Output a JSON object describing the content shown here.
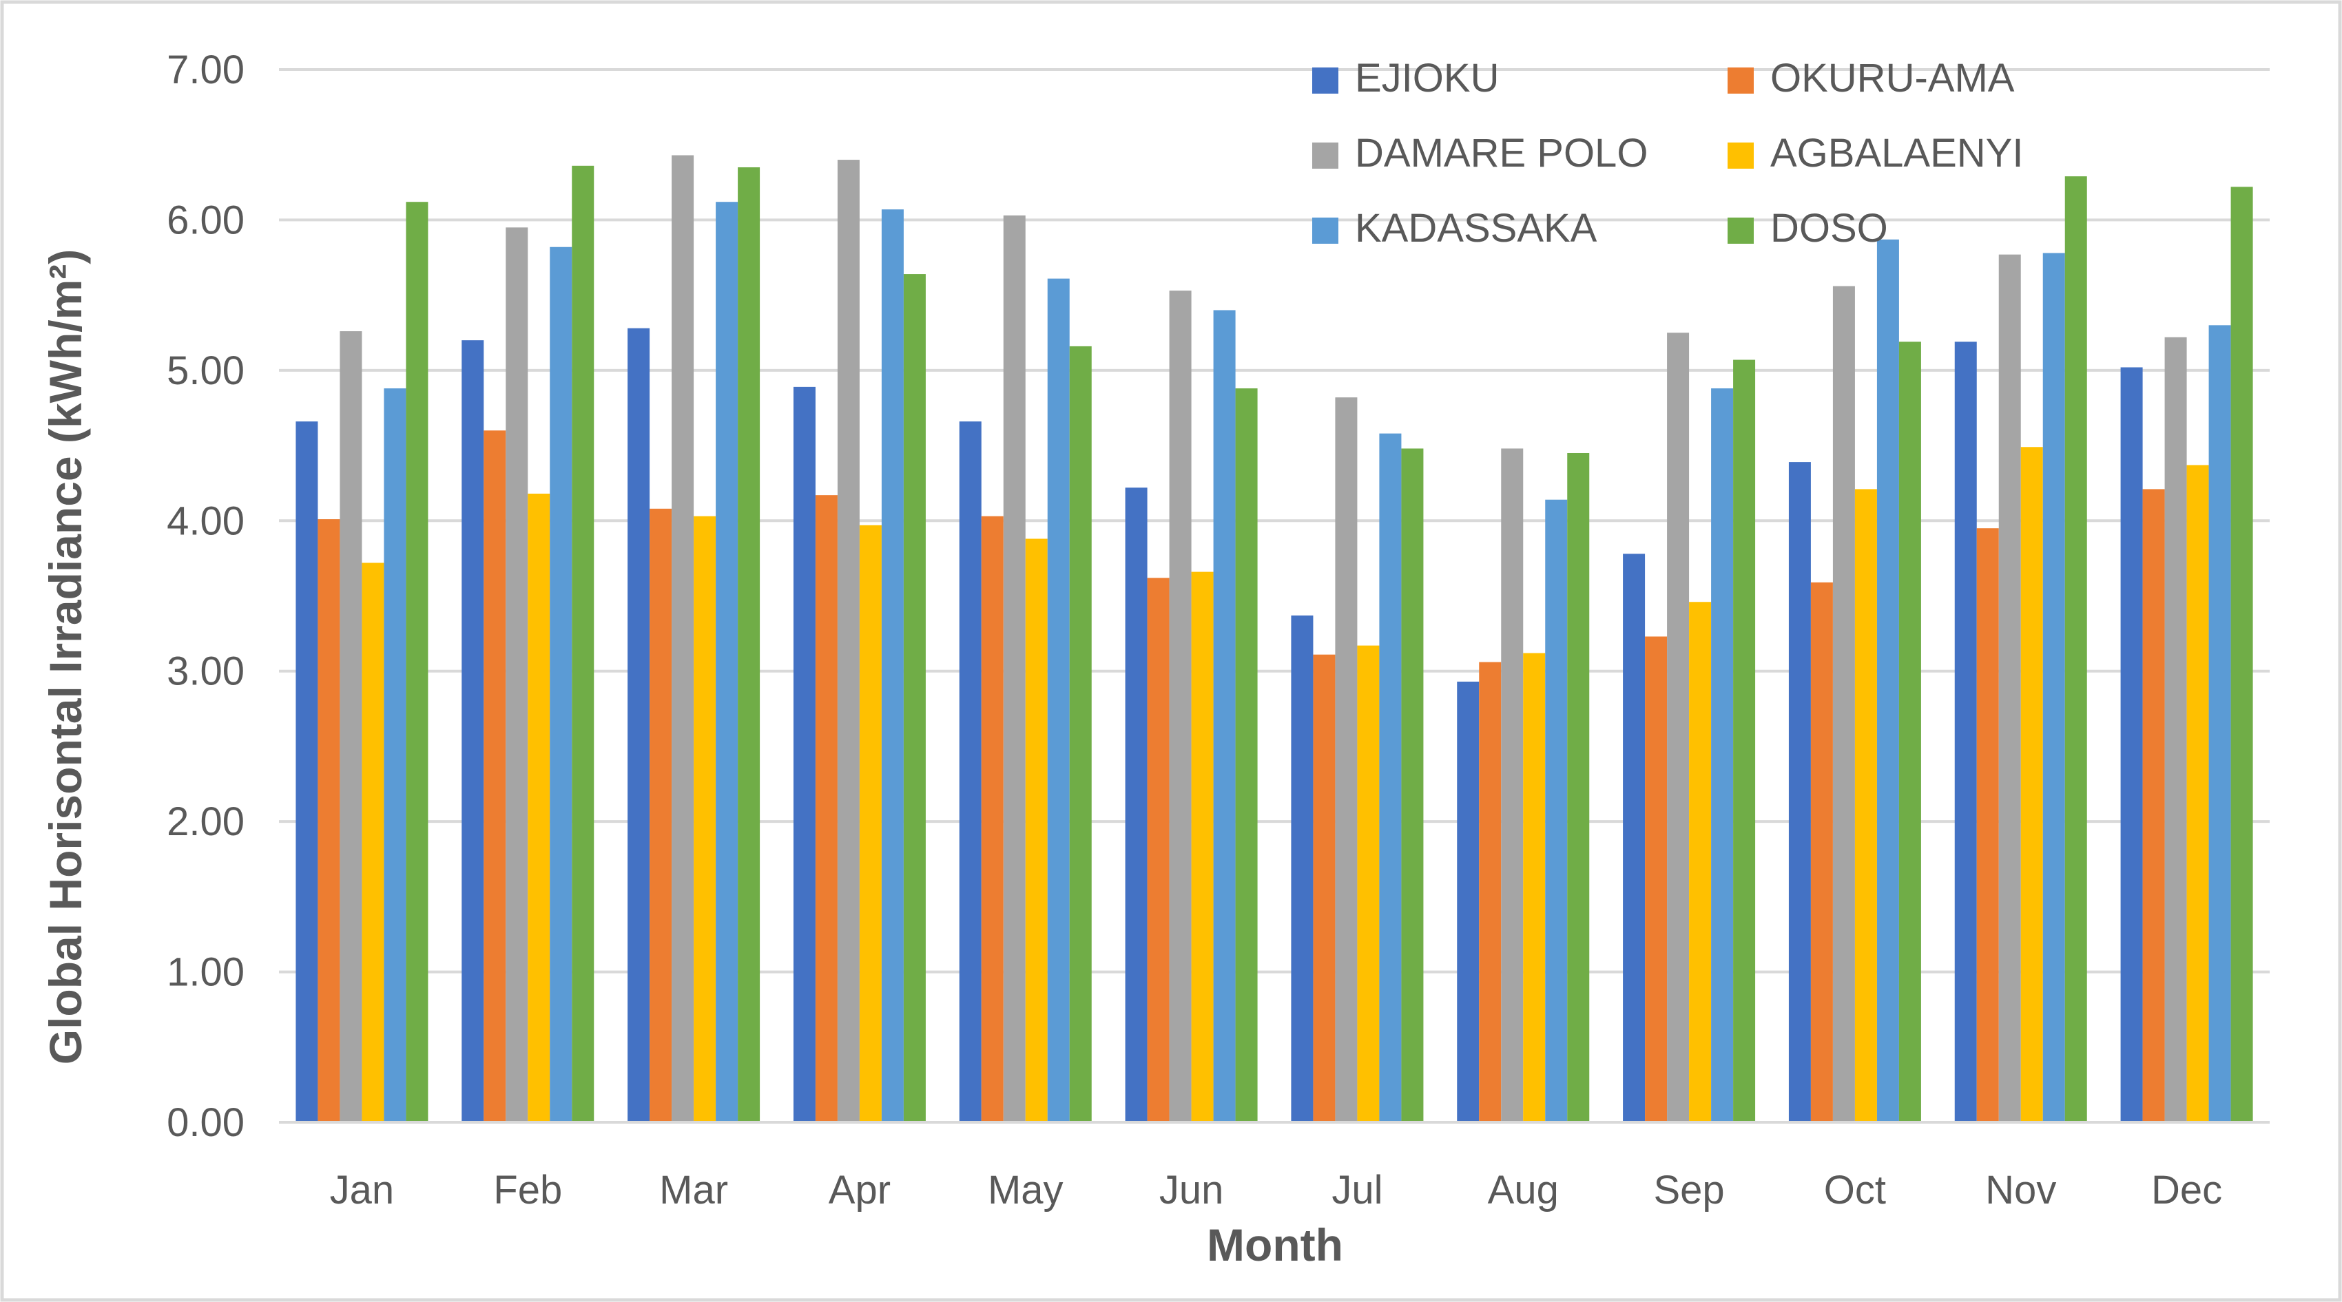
{
  "chart_data": {
    "type": "bar",
    "title": "",
    "xlabel": "Month",
    "ylabel": "Global Horisontal Irradiance (kWh/m²)",
    "ylim": [
      0,
      7
    ],
    "ytick_step": 1,
    "ytick_labels": [
      "0.00",
      "1.00",
      "2.00",
      "3.00",
      "4.00",
      "5.00",
      "6.00",
      "7.00"
    ],
    "grid": true,
    "legend_position": "top-right",
    "categories": [
      "Jan",
      "Feb",
      "Mar",
      "Apr",
      "May",
      "Jun",
      "Jul",
      "Aug",
      "Sep",
      "Oct",
      "Nov",
      "Dec"
    ],
    "series": [
      {
        "name": "EJIOKU",
        "color": "#4472C4",
        "values": [
          4.66,
          5.2,
          5.28,
          4.89,
          4.66,
          4.22,
          3.37,
          2.93,
          3.78,
          4.39,
          5.19,
          5.02
        ]
      },
      {
        "name": "OKURU-AMA",
        "color": "#ED7D31",
        "values": [
          4.01,
          4.6,
          4.08,
          4.17,
          4.03,
          3.62,
          3.11,
          3.06,
          3.23,
          3.59,
          3.95,
          4.21
        ]
      },
      {
        "name": "DAMARE POLO",
        "color": "#A5A5A5",
        "values": [
          5.26,
          5.95,
          6.43,
          6.4,
          6.03,
          5.53,
          4.82,
          4.48,
          5.25,
          5.56,
          5.77,
          5.22
        ]
      },
      {
        "name": "AGBALAENYI",
        "color": "#FFC000",
        "values": [
          3.72,
          4.18,
          4.03,
          3.97,
          3.88,
          3.66,
          3.17,
          3.12,
          3.46,
          4.21,
          4.49,
          4.37
        ]
      },
      {
        "name": "KADASSAKA",
        "color": "#5B9BD5",
        "values": [
          4.88,
          5.82,
          6.12,
          6.07,
          5.61,
          5.4,
          4.58,
          4.14,
          4.88,
          5.87,
          5.78,
          5.3
        ]
      },
      {
        "name": "DOSO",
        "color": "#70AD47",
        "values": [
          6.12,
          6.36,
          6.35,
          5.64,
          5.16,
          4.88,
          4.48,
          4.45,
          5.07,
          5.19,
          6.29,
          6.22
        ]
      }
    ]
  },
  "colors": {
    "gridline": "#D9D9D9",
    "axis_line": "#D9D9D9",
    "text": "#595959",
    "border": "#D9D9D9",
    "background": "#FFFFFF"
  }
}
